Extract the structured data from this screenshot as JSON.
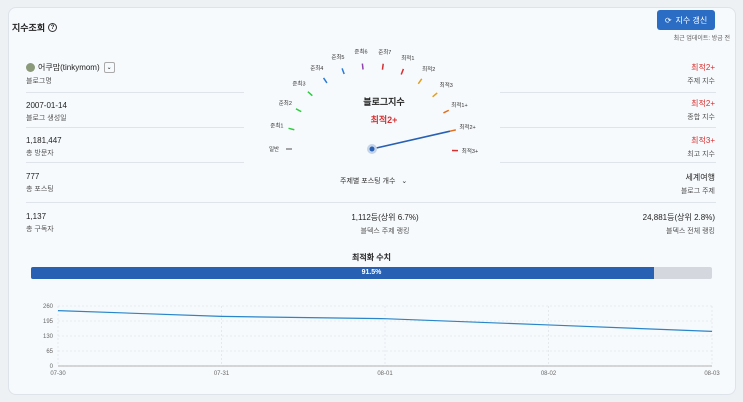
{
  "header": {
    "title": "지수조회",
    "refresh_label": "지수 갱신",
    "update_note": "최근 업데이트: 방금 전"
  },
  "left": [
    {
      "value": "어쿠맘(tinkymom)",
      "label": "블로그명"
    },
    {
      "value": "2007-01-14",
      "label": "블로그 생성일"
    },
    {
      "value": "1,181,447",
      "label": "총 방문자"
    },
    {
      "value": "777",
      "label": "총 포스팅"
    },
    {
      "value": "1,137",
      "label": "총 구독자"
    }
  ],
  "right": [
    {
      "value": "최적2+",
      "label": "주제 지수"
    },
    {
      "value": "최적2+",
      "label": "종합 지수"
    },
    {
      "value": "최적3+",
      "label": "최고 지수"
    },
    {
      "value": "세계여행",
      "label": "블로그 주제"
    },
    {
      "value": "24,881등(상위 2.8%)",
      "label": "블덱스 전체 랭킹"
    }
  ],
  "middle_rank": {
    "value": "1,112등(상위 6.7%)",
    "label": "블덱스 주제 랭킹"
  },
  "gauge": {
    "title": "블로그지수",
    "value": "최적2+",
    "ticks": [
      "일반",
      "준최1",
      "준최2",
      "준최3",
      "준최4",
      "준최5",
      "준최6",
      "준최7",
      "최적1",
      "최적2",
      "최적3",
      "최적1+",
      "최적2+",
      "최적3+",
      "최적4+"
    ],
    "tick_colors": [
      "#888",
      "#2ecc40",
      "#2ecc40",
      "#2ecc40",
      "#2a7bd5",
      "#2a7bd5",
      "#8e44ad",
      "#d63030",
      "#d63030",
      "#e0a020",
      "#e0a020",
      "#e07020",
      "#e07020",
      "#d63030",
      "#d63030"
    ],
    "needle_index": 12,
    "topic_dropdown": "주제별 포스팅 개수"
  },
  "optimization": {
    "title": "최적화 수치",
    "percent": 91.5,
    "label": "91.5%"
  },
  "chart_data": {
    "type": "line",
    "x": [
      "07-30",
      "07-31",
      "08-01",
      "08-02",
      "08-03"
    ],
    "series": [
      {
        "values": [
          240,
          215,
          205,
          178,
          150
        ]
      }
    ],
    "yticks": [
      "260",
      "195",
      "130",
      "65",
      "0"
    ],
    "ylim": [
      0,
      260
    ],
    "color": "#2a86c8"
  }
}
